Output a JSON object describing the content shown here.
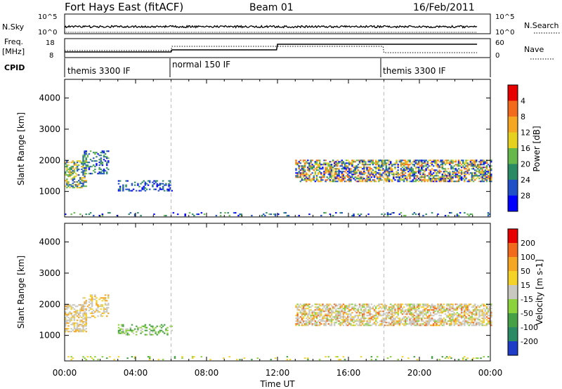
{
  "header": {
    "station": "Fort Hays East (fitACF)",
    "beam": "Beam 01",
    "date": "16/Feb/2011"
  },
  "top_panels": {
    "nsky_label": "N.Sky",
    "nsearch_label": "N.Search",
    "freq_label_line1": "Freq.",
    "freq_label_line2": "[MHz]",
    "nave_label": "Nave",
    "cpid_label": "CPID",
    "nsky_ticks": [
      "10^5",
      "10^0"
    ],
    "nsearch_ticks": [
      "10^5",
      "10^0"
    ],
    "freq_ticks": [
      "18",
      "8"
    ],
    "nave_ticks": [
      "60",
      "0"
    ],
    "cpid_segments": [
      {
        "label": "themis 3300 IF",
        "start_hour": 0
      },
      {
        "label": "normal 150 IF",
        "start_hour": 6
      },
      {
        "label": "themis 3300 IF",
        "start_hour": 18
      }
    ]
  },
  "chart_data": [
    {
      "type": "heatmap",
      "name": "power",
      "ylabel": "Slant Range [km]",
      "xlim": [
        0,
        24
      ],
      "ylim": [
        180,
        4600
      ],
      "yticks": [
        1000,
        2000,
        3000,
        4000
      ],
      "colorbar_label": "Power [dB]",
      "colorbar_ticks": [
        "4",
        "8",
        "12",
        "16",
        "20",
        "24",
        "28"
      ],
      "colorbar_colors": [
        "#0000ff",
        "#1f50c8",
        "#2a8a64",
        "#66b84a",
        "#e6d21e",
        "#f5a623",
        "#f26b1d",
        "#e60000"
      ],
      "scatter_regions": [
        {
          "x0": 0.0,
          "x1": 1.2,
          "r0": 1100,
          "r1": 2000,
          "density": 0.55,
          "levels": [
            1,
            2,
            3,
            4,
            5
          ]
        },
        {
          "x0": 1.0,
          "x1": 2.5,
          "r0": 1550,
          "r1": 2300,
          "density": 0.35,
          "levels": [
            0,
            1,
            2,
            3
          ]
        },
        {
          "x0": 3.0,
          "x1": 6.0,
          "r0": 1000,
          "r1": 1350,
          "density": 0.3,
          "levels": [
            0,
            1,
            2
          ]
        },
        {
          "x0": 0.0,
          "x1": 24.0,
          "r0": 200,
          "r1": 330,
          "density": 0.12,
          "levels": [
            0,
            1,
            2,
            3
          ]
        },
        {
          "x0": 13.0,
          "x1": 24.0,
          "r0": 1300,
          "r1": 2000,
          "density": 0.6,
          "levels": [
            0,
            1,
            2,
            3,
            4,
            5,
            6
          ]
        }
      ]
    },
    {
      "type": "heatmap",
      "name": "velocity",
      "ylabel": "Slant Range [km]",
      "xlabel": "Time UT",
      "xlim": [
        0,
        24
      ],
      "xticks": [
        "00:00",
        "04:00",
        "08:00",
        "12:00",
        "16:00",
        "20:00",
        "00:00"
      ],
      "ylim": [
        180,
        4600
      ],
      "yticks": [
        1000,
        2000,
        3000,
        4000
      ],
      "colorbar_label": "Velocity [m s-1]",
      "colorbar_ticks": [
        "200",
        "100",
        "50",
        "15",
        "-15",
        "-50",
        "-100",
        "-200"
      ],
      "colorbar_colors": [
        "#1e3cc8",
        "#2a8a64",
        "#46a046",
        "#8cd23c",
        "#c8c8c0",
        "#f5d228",
        "#f5a623",
        "#f26b1d",
        "#e60000"
      ],
      "scatter_regions": [
        {
          "x0": 0.0,
          "x1": 1.2,
          "r0": 1100,
          "r1": 2000,
          "density": 0.55,
          "levels": [
            4,
            4,
            4,
            5,
            6
          ]
        },
        {
          "x0": 1.0,
          "x1": 2.5,
          "r0": 1550,
          "r1": 2300,
          "density": 0.35,
          "levels": [
            4,
            4,
            5,
            6
          ]
        },
        {
          "x0": 3.0,
          "x1": 6.0,
          "r0": 1000,
          "r1": 1350,
          "density": 0.3,
          "levels": [
            2,
            3,
            4
          ]
        },
        {
          "x0": 0.0,
          "x1": 24.0,
          "r0": 200,
          "r1": 330,
          "density": 0.12,
          "levels": [
            2,
            3,
            5
          ]
        },
        {
          "x0": 13.0,
          "x1": 24.0,
          "r0": 1300,
          "r1": 2000,
          "density": 0.6,
          "levels": [
            4,
            4,
            4,
            4,
            5,
            3,
            6,
            7
          ]
        }
      ]
    }
  ]
}
